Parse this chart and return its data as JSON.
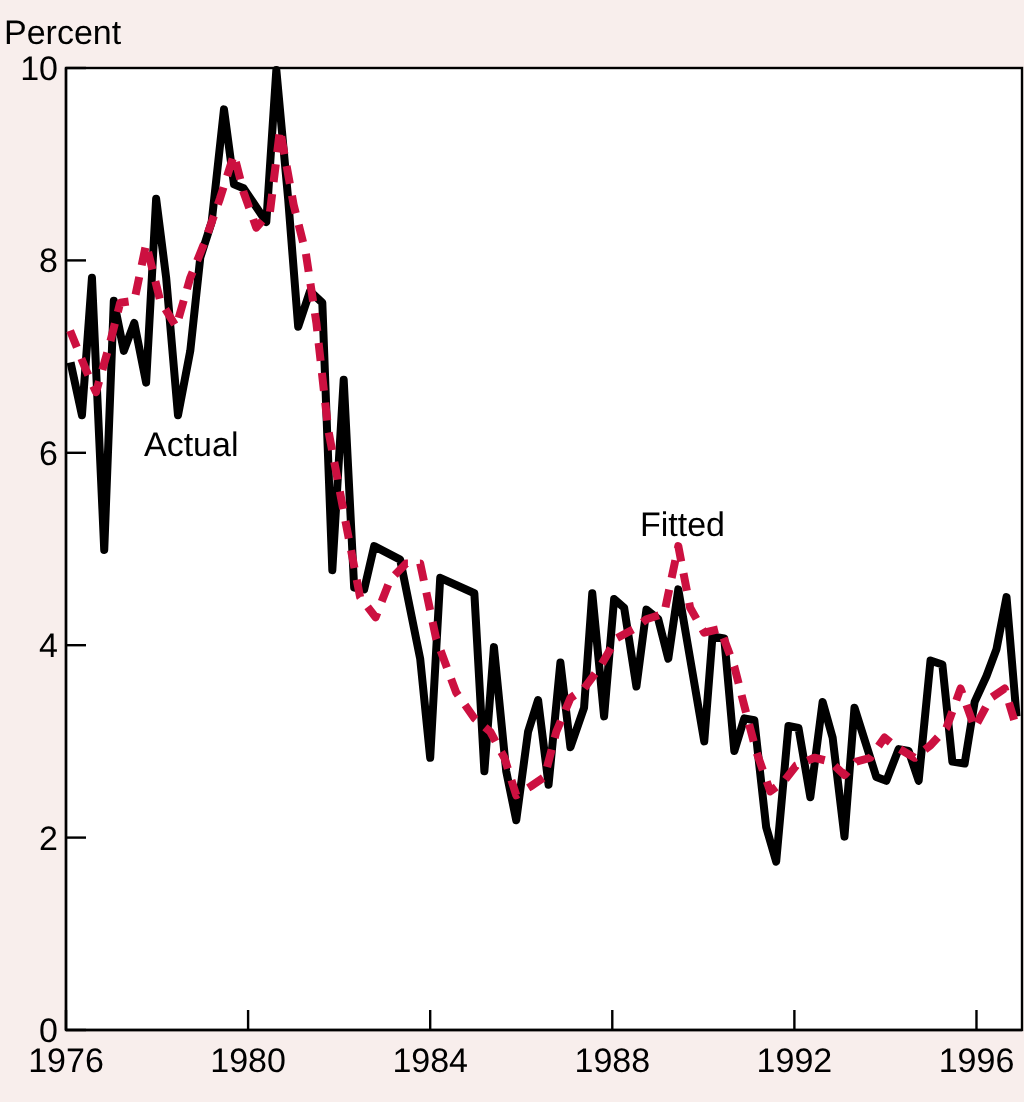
{
  "chart_data": {
    "type": "line",
    "ylabel": "Percent",
    "xlim": [
      1976,
      1997
    ],
    "xticks": [
      1976,
      1980,
      1984,
      1988,
      1992,
      1996
    ],
    "ylim": [
      0,
      10
    ],
    "yticks": [
      0,
      2,
      4,
      6,
      8,
      10
    ],
    "grid": false,
    "legend": false,
    "series": [
      {
        "name": "Actual",
        "color": "#000000",
        "line_style": "solid",
        "x": [
          1976.1,
          1976.35,
          1976.57,
          1976.84,
          1977.05,
          1977.27,
          1977.5,
          1977.76,
          1977.98,
          1978.2,
          1978.46,
          1978.73,
          1978.95,
          1979.2,
          1979.47,
          1979.69,
          1979.9,
          1980.4,
          1980.62,
          1980.88,
          1981.1,
          1981.36,
          1981.63,
          1981.85,
          1982.1,
          1982.33,
          1982.55,
          1982.77,
          1983.34,
          1983.78,
          1984.0,
          1984.22,
          1984.97,
          1985.19,
          1985.4,
          1985.67,
          1985.89,
          1986.15,
          1986.37,
          1986.6,
          1986.86,
          1987.08,
          1987.38,
          1987.56,
          1987.82,
          1988.04,
          1988.26,
          1988.53,
          1988.75,
          1989.01,
          1989.23,
          1989.45,
          1990.02,
          1990.2,
          1990.46,
          1990.68,
          1990.9,
          1991.12,
          1991.38,
          1991.6,
          1991.87,
          1992.09,
          1992.35,
          1992.62,
          1992.84,
          1993.1,
          1993.32,
          1993.58,
          1993.8,
          1994.02,
          1994.29,
          1994.51,
          1994.73,
          1994.99,
          1995.25,
          1995.47,
          1995.74,
          1995.96,
          1996.22,
          1996.44,
          1996.66,
          1996.88
        ],
        "values": [
          6.94,
          6.39,
          7.82,
          4.99,
          7.58,
          7.06,
          7.35,
          6.73,
          8.64,
          7.82,
          6.39,
          7.06,
          8.03,
          8.4,
          9.57,
          8.79,
          8.75,
          8.4,
          9.98,
          8.64,
          7.31,
          7.68,
          7.56,
          4.78,
          6.76,
          4.6,
          4.58,
          5.03,
          4.89,
          3.86,
          2.83,
          4.7,
          4.54,
          2.69,
          3.98,
          2.69,
          2.18,
          3.1,
          3.43,
          2.55,
          3.82,
          2.94,
          3.35,
          4.54,
          3.26,
          4.48,
          4.39,
          3.57,
          4.37,
          4.27,
          3.86,
          4.58,
          3.0,
          4.09,
          4.07,
          2.9,
          3.24,
          3.22,
          2.11,
          1.75,
          3.16,
          3.14,
          2.42,
          3.41,
          3.04,
          2.01,
          3.35,
          2.96,
          2.63,
          2.59,
          2.92,
          2.9,
          2.59,
          3.84,
          3.8,
          2.79,
          2.77,
          3.41,
          3.68,
          3.96,
          4.5,
          3.26
        ]
      },
      {
        "name": "Fitted",
        "color": "#cc1040",
        "line_style": "dashed",
        "x": [
          1976.09,
          1976.44,
          1976.66,
          1976.97,
          1977.19,
          1977.5,
          1977.76,
          1978.07,
          1978.42,
          1978.73,
          1979.03,
          1979.38,
          1979.69,
          1979.9,
          1980.18,
          1980.48,
          1980.7,
          1981.0,
          1981.27,
          1981.5,
          1981.76,
          1982.15,
          1982.46,
          1982.8,
          1983.12,
          1983.47,
          1983.78,
          1984.13,
          1984.57,
          1984.97,
          1985.32,
          1985.63,
          1985.89,
          1986.2,
          1986.51,
          1986.77,
          1987.08,
          1987.38,
          1987.74,
          1988.09,
          1988.48,
          1988.75,
          1989.14,
          1989.45,
          1989.71,
          1990.02,
          1990.37,
          1990.68,
          1990.9,
          1991.16,
          1991.47,
          1991.78,
          1992.04,
          1992.44,
          1992.79,
          1993.1,
          1993.36,
          1993.67,
          1993.98,
          1994.24,
          1994.64,
          1994.99,
          1995.34,
          1995.65,
          1995.96,
          1996.31,
          1996.62,
          1996.88
        ],
        "values": [
          7.27,
          6.86,
          6.63,
          7.15,
          7.56,
          7.58,
          8.17,
          7.58,
          7.31,
          7.82,
          8.17,
          8.64,
          9.1,
          8.71,
          8.34,
          8.5,
          9.36,
          8.58,
          8.07,
          7.35,
          6.24,
          5.26,
          4.5,
          4.29,
          4.68,
          4.85,
          4.85,
          4.07,
          3.51,
          3.24,
          3.1,
          2.83,
          2.44,
          2.53,
          2.63,
          3.1,
          3.45,
          3.55,
          3.78,
          4.07,
          4.17,
          4.27,
          4.33,
          5.03,
          4.39,
          4.13,
          4.17,
          3.78,
          3.37,
          2.9,
          2.48,
          2.59,
          2.75,
          2.83,
          2.79,
          2.65,
          2.79,
          2.83,
          3.04,
          2.94,
          2.83,
          2.96,
          3.14,
          3.55,
          3.14,
          3.45,
          3.55,
          3.14
        ]
      }
    ]
  }
}
